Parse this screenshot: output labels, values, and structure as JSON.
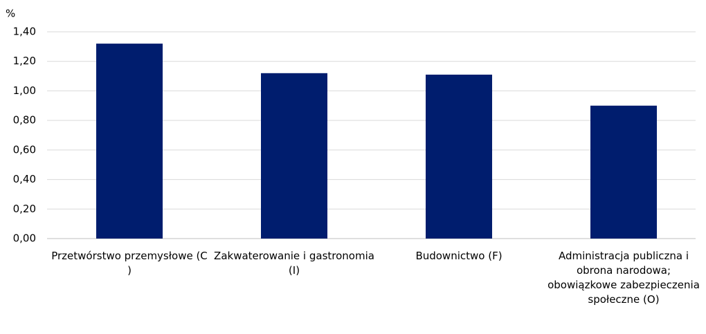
{
  "chart_data": {
    "type": "bar",
    "y_label": "%",
    "categories": [
      "Przetwórstwo przemysłowe (C )",
      "Zakwaterowanie i gastronomia (I)",
      "Budownictwo (F)",
      "Administracja publiczna i obrona narodowa; obowiązkowe zabezpieczenia społeczne (O)"
    ],
    "values": [
      1.32,
      1.12,
      1.11,
      0.9
    ],
    "color": "#001d6e",
    "ylim": [
      0,
      1.4
    ],
    "yticks": [
      {
        "value": 0,
        "label": "0,00"
      },
      {
        "value": 0.2,
        "label": "0,20"
      },
      {
        "value": 0.4,
        "label": "0,40"
      },
      {
        "value": 0.6,
        "label": "0,60"
      },
      {
        "value": 0.8,
        "label": "0,80"
      },
      {
        "value": 1.0,
        "label": "1,00"
      },
      {
        "value": 1.2,
        "label": "1,20"
      },
      {
        "value": 1.4,
        "label": "1,40"
      }
    ],
    "grid": true
  }
}
